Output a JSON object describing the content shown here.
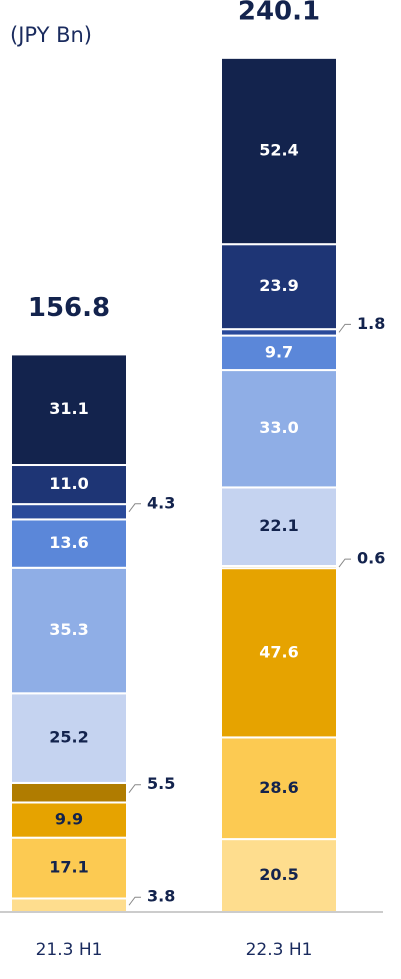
{
  "chart_data": {
    "type": "stacked_bar",
    "y_label": "(JPY Bn)",
    "categories": [
      "21.3 H1",
      "22.3 H1"
    ],
    "totals": [
      156.8,
      240.1
    ],
    "ylim": [
      0,
      250
    ],
    "series": [
      {
        "color": "#fedd8e",
        "values": [
          3.8,
          20.5
        ]
      },
      {
        "color": "#fcca52",
        "values": [
          17.1,
          28.6
        ]
      },
      {
        "color": "#e6a300",
        "values": [
          9.9,
          47.6
        ]
      },
      {
        "color": "#b07c00",
        "values": [
          5.5,
          0.6
        ]
      },
      {
        "color": "#c5d3f0",
        "values": [
          25.2,
          22.1
        ]
      },
      {
        "color": "#8faee6",
        "values": [
          35.3,
          33.0
        ],
        "value_labels": [
          "35.3",
          "33.0"
        ]
      },
      {
        "color": "#5b87d9",
        "values": [
          13.6,
          9.7
        ]
      },
      {
        "color": "#2a4a9a",
        "values": [
          4.3,
          1.8
        ]
      },
      {
        "color": "#1e3575",
        "values": [
          11.0,
          23.9
        ],
        "value_labels": [
          "11.0",
          "23.9"
        ]
      },
      {
        "color": "#13234d",
        "values": [
          31.1,
          52.4
        ]
      }
    ]
  }
}
